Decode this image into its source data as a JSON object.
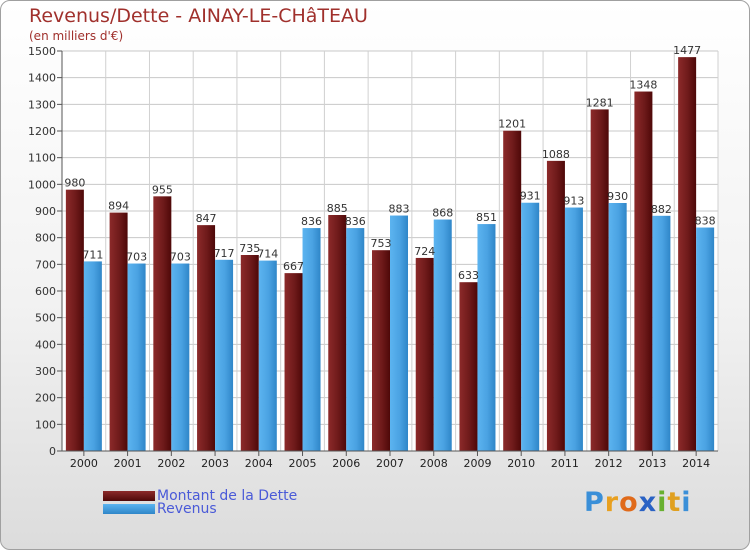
{
  "header": {
    "title": "Revenus/Dette - AINAY-LE-CHâTEAU",
    "subtitle": "(en milliers d'€)"
  },
  "colors": {
    "dette": "#7a1f1f",
    "revenus": "#4ca6e8",
    "title": "#a0302c",
    "legend_text": "#4a5ad8"
  },
  "legend": {
    "items": [
      {
        "label": "Montant de la Dette",
        "color": "#7a1f1f"
      },
      {
        "label": "Revenus",
        "color": "#4ca6e8"
      }
    ]
  },
  "logo": {
    "text": "Proxiti"
  },
  "chart_data": {
    "type": "bar",
    "title": "Revenus/Dette - AINAY-LE-CHâTEAU",
    "subtitle": "(en milliers d'€)",
    "categories": [
      "2000",
      "2001",
      "2002",
      "2003",
      "2004",
      "2005",
      "2006",
      "2007",
      "2008",
      "2009",
      "2010",
      "2011",
      "2012",
      "2013",
      "2014"
    ],
    "series": [
      {
        "name": "Montant de la Dette",
        "values": [
          980,
          894,
          955,
          847,
          735,
          667,
          885,
          753,
          724,
          633,
          1201,
          1088,
          1281,
          1348,
          1477
        ]
      },
      {
        "name": "Revenus",
        "values": [
          711,
          703,
          703,
          717,
          714,
          836,
          836,
          883,
          868,
          851,
          931,
          913,
          930,
          882,
          838
        ]
      }
    ],
    "ylim": [
      0,
      1500
    ],
    "yticks": [
      0,
      100,
      200,
      300,
      400,
      500,
      600,
      700,
      800,
      900,
      1000,
      1100,
      1200,
      1300,
      1400,
      1500
    ],
    "grid": true,
    "legend_position": "bottom-left",
    "data_labels": true
  }
}
